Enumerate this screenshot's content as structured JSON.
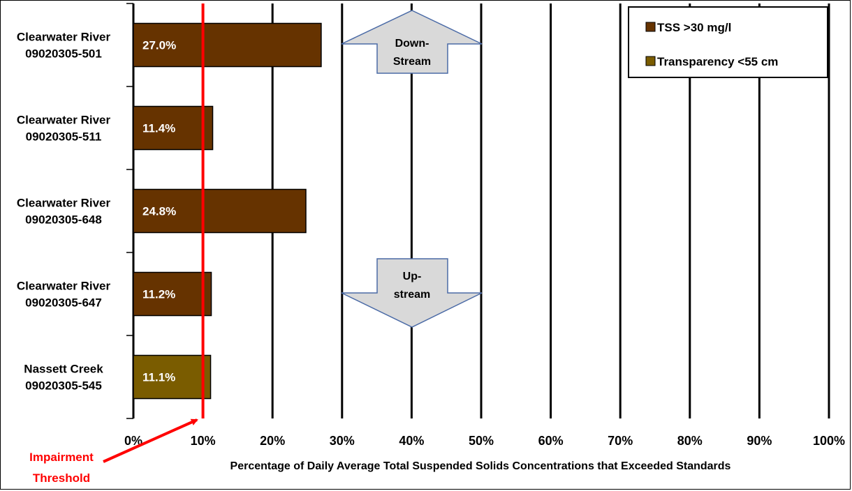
{
  "chart_data": {
    "type": "bar",
    "orientation": "horizontal",
    "categories": [
      [
        "Clearwater River",
        "09020305-501"
      ],
      [
        "Clearwater River",
        "09020305-511"
      ],
      [
        "Clearwater River",
        "09020305-648"
      ],
      [
        "Clearwater River",
        "09020305-647"
      ],
      [
        "Nassett Creek",
        "09020305-545"
      ]
    ],
    "values": [
      27.0,
      11.4,
      24.8,
      11.2,
      11.1
    ],
    "value_labels": [
      "27.0%",
      "11.4%",
      "24.8%",
      "11.2%",
      "11.1%"
    ],
    "series_of_bar": [
      0,
      0,
      0,
      0,
      1
    ],
    "series": [
      {
        "name": "TSS >30 mg/l",
        "color": "#663300"
      },
      {
        "name": "Transparency <55 cm",
        "color": "#7a5c00"
      }
    ],
    "xlabel": "Percentage of Daily Average Total Suspended Solids Concentrations that Exceeded Standards",
    "xlim": [
      0,
      100
    ],
    "xticks": [
      0,
      10,
      20,
      30,
      40,
      50,
      60,
      70,
      80,
      90,
      100
    ],
    "xtick_labels": [
      "0%",
      "10%",
      "20%",
      "30%",
      "40%",
      "50%",
      "60%",
      "70%",
      "80%",
      "90%",
      "100%"
    ],
    "grid": true,
    "legend_position": "top-right",
    "threshold": {
      "value": 10,
      "color": "#ff0000",
      "label_lines": [
        "Impairment",
        "Threshold"
      ]
    },
    "annotations": {
      "downstream": [
        "Down-",
        "Stream"
      ],
      "upstream": [
        "Up-",
        "stream"
      ]
    }
  }
}
